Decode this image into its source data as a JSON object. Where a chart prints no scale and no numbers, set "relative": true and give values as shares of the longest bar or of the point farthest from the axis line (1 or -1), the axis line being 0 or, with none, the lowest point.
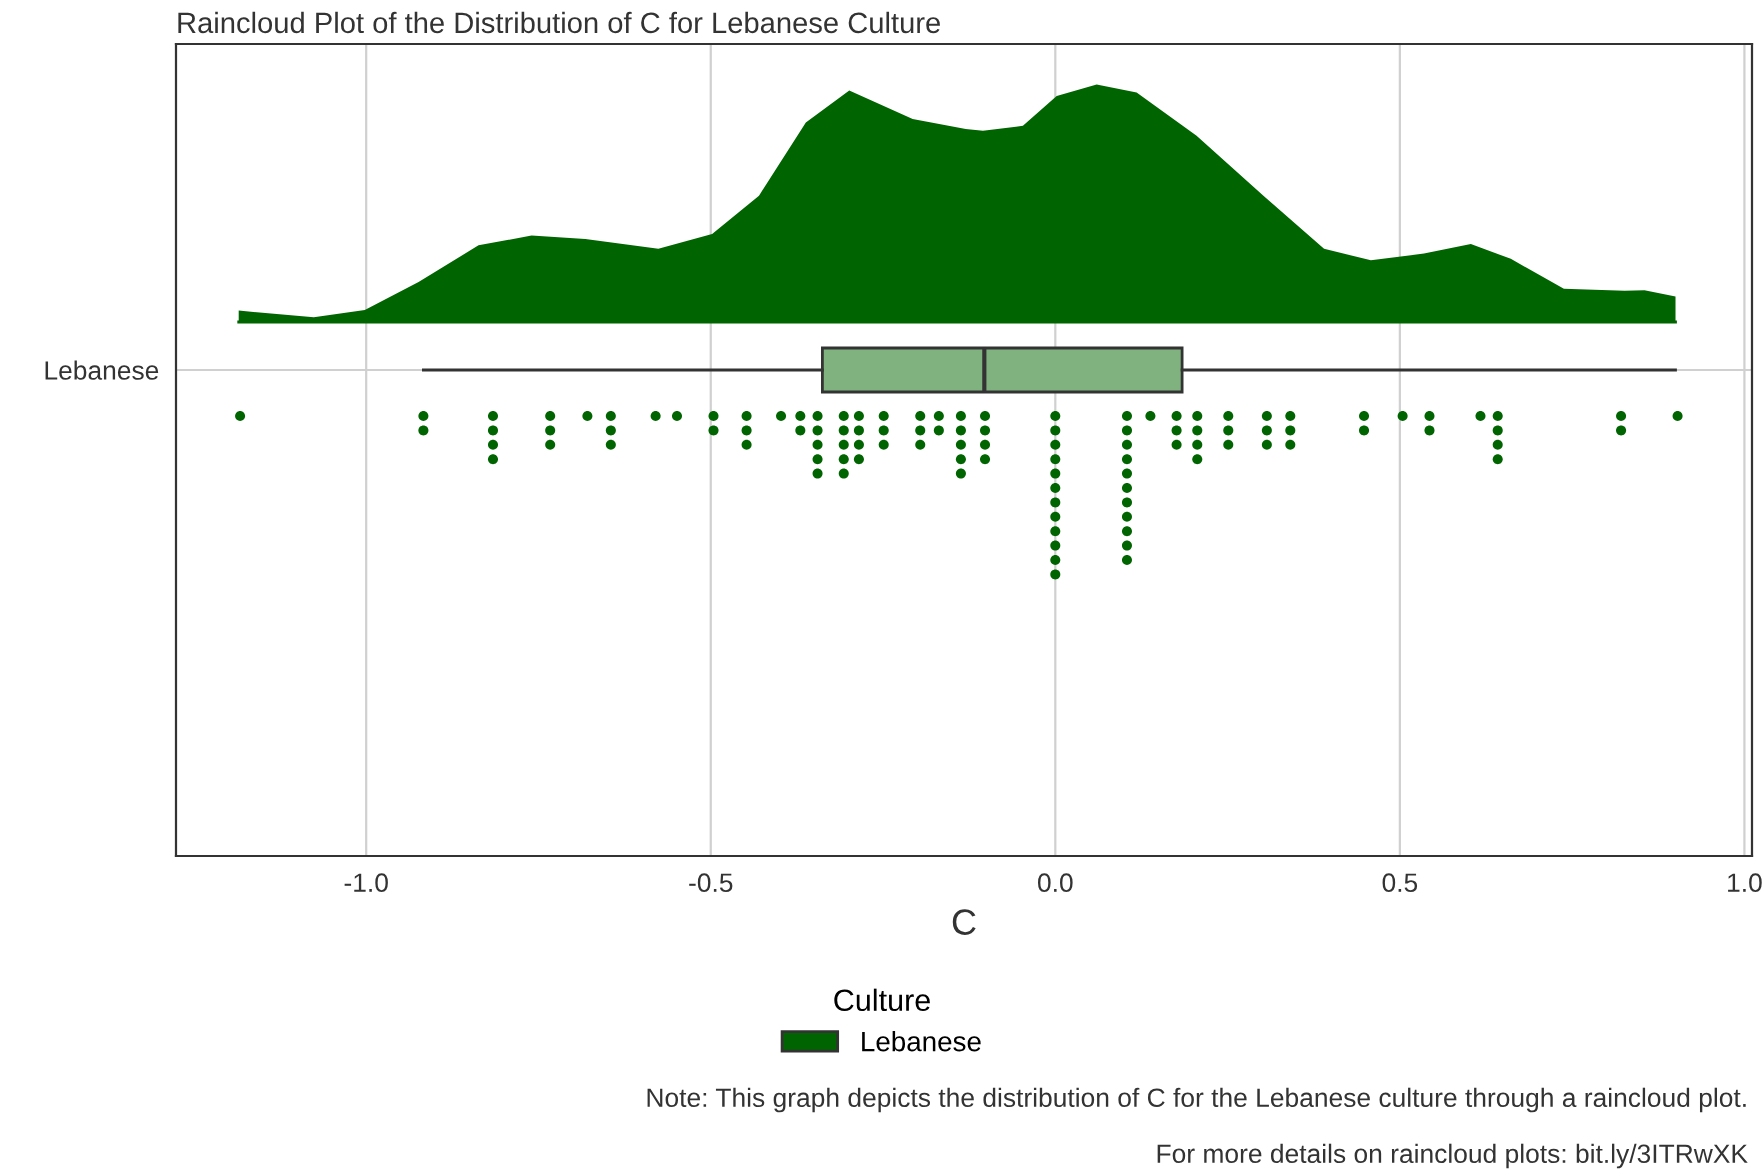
{
  "chart_data": [
    {
      "type": "area",
      "relative": true,
      "xlim": [
        -1.276,
        1.011
      ],
      "grid": "x",
      "legend": "bottom",
      "legend_title": "Culture",
      "series": [
        {
          "name": "Lebanese",
          "color": "#006400",
          "x": [
            -1.185,
            -1.076,
            -1.002,
            -0.924,
            -0.837,
            -0.76,
            -0.682,
            -0.576,
            -0.498,
            -0.43,
            -0.362,
            -0.299,
            -0.207,
            -0.13,
            -0.105,
            -0.047,
            0.002,
            0.06,
            0.118,
            0.205,
            0.302,
            0.39,
            0.458,
            0.535,
            0.603,
            0.661,
            0.738,
            0.826,
            0.855,
            0.9
          ],
          "values": [
            0.048,
            0.02,
            0.05,
            0.168,
            0.323,
            0.364,
            0.35,
            0.308,
            0.37,
            0.532,
            0.84,
            0.975,
            0.855,
            0.813,
            0.805,
            0.826,
            0.952,
            1.0,
            0.966,
            0.784,
            0.532,
            0.308,
            0.26,
            0.288,
            0.328,
            0.266,
            0.14,
            0.132,
            0.134,
            0.107
          ]
        }
      ]
    },
    {
      "type": "box",
      "title": "Raincloud Plot of the Distribution of C for Lebanese Culture",
      "xlabel": "C",
      "categories": [
        "Lebanese"
      ],
      "orientation": "horizontal",
      "xlim": [
        -1.276,
        1.011
      ],
      "xticks": [
        {
          "value": -1.0,
          "label": "-1.0"
        },
        {
          "value": -0.5,
          "label": "-0.5"
        },
        {
          "value": 0.0,
          "label": "0.0"
        },
        {
          "value": 0.5,
          "label": "0.5"
        },
        {
          "value": 1.0,
          "label": "1.0"
        }
      ],
      "ref_lines": [
        {
          "axis": "y",
          "value": "Lebanese",
          "color": "#d0d0d0"
        }
      ],
      "color": "#80b280",
      "boxes": [
        {
          "low": -0.917,
          "q1": -0.338,
          "median": -0.103,
          "q3": 0.184,
          "high": 0.9
        }
      ],
      "annotations": [
        "Note: This graph depicts the distribution of C for the Lebanese culture through a raincloud plot.",
        "For more details on raincloud plots: bit.ly/3ITRwXK"
      ],
      "series": [
        {
          "type": "scatter",
          "color": "#006400",
          "marker": "circle",
          "x": [
            "Lebanese",
            "Lebanese",
            "Lebanese",
            "Lebanese",
            "Lebanese",
            "Lebanese",
            "Lebanese",
            "Lebanese",
            "Lebanese",
            "Lebanese",
            "Lebanese",
            "Lebanese",
            "Lebanese",
            "Lebanese",
            "Lebanese",
            "Lebanese",
            "Lebanese",
            "Lebanese",
            "Lebanese",
            "Lebanese",
            "Lebanese",
            "Lebanese",
            "Lebanese",
            "Lebanese",
            "Lebanese",
            "Lebanese",
            "Lebanese",
            "Lebanese",
            "Lebanese",
            "Lebanese",
            "Lebanese",
            "Lebanese",
            "Lebanese",
            "Lebanese",
            "Lebanese",
            "Lebanese",
            "Lebanese",
            "Lebanese",
            "Lebanese",
            "Lebanese",
            "Lebanese",
            "Lebanese",
            "Lebanese",
            "Lebanese",
            "Lebanese",
            "Lebanese",
            "Lebanese",
            "Lebanese",
            "Lebanese",
            "Lebanese",
            "Lebanese",
            "Lebanese",
            "Lebanese",
            "Lebanese",
            "Lebanese",
            "Lebanese",
            "Lebanese",
            "Lebanese",
            "Lebanese",
            "Lebanese",
            "Lebanese",
            "Lebanese",
            "Lebanese",
            "Lebanese",
            "Lebanese",
            "Lebanese",
            "Lebanese",
            "Lebanese",
            "Lebanese",
            "Lebanese",
            "Lebanese",
            "Lebanese",
            "Lebanese",
            "Lebanese",
            "Lebanese",
            "Lebanese",
            "Lebanese",
            "Lebanese",
            "Lebanese",
            "Lebanese",
            "Lebanese",
            "Lebanese",
            "Lebanese",
            "Lebanese",
            "Lebanese",
            "Lebanese",
            "Lebanese",
            "Lebanese",
            "Lebanese",
            "Lebanese",
            "Lebanese",
            "Lebanese",
            "Lebanese",
            "Lebanese",
            "Lebanese",
            "Lebanese",
            "Lebanese",
            "Lebanese",
            "Lebanese",
            "Lebanese",
            "Lebanese",
            "Lebanese",
            "Lebanese",
            "Lebanese",
            "Lebanese",
            "Lebanese",
            "Lebanese",
            "Lebanese"
          ],
          "values": [
            -1.183,
            -0.917,
            -0.917,
            -0.816,
            -0.816,
            -0.816,
            -0.816,
            -0.733,
            -0.733,
            -0.733,
            -0.679,
            -0.645,
            -0.645,
            -0.645,
            -0.58,
            -0.549,
            -0.496,
            -0.496,
            -0.448,
            -0.448,
            -0.448,
            -0.398,
            -0.37,
            -0.37,
            -0.345,
            -0.345,
            -0.345,
            -0.345,
            -0.345,
            -0.307,
            -0.307,
            -0.307,
            -0.307,
            -0.307,
            -0.285,
            -0.285,
            -0.285,
            -0.285,
            -0.249,
            -0.249,
            -0.249,
            -0.196,
            -0.196,
            -0.196,
            -0.169,
            -0.169,
            -0.137,
            -0.137,
            -0.137,
            -0.137,
            -0.137,
            -0.102,
            -0.102,
            -0.102,
            -0.102,
            0.0,
            0.0,
            0.0,
            0.0,
            0.0,
            0.0,
            0.0,
            0.0,
            0.0,
            0.0,
            0.0,
            0.0,
            0.104,
            0.104,
            0.104,
            0.104,
            0.104,
            0.104,
            0.104,
            0.104,
            0.104,
            0.104,
            0.104,
            0.138,
            0.176,
            0.176,
            0.176,
            0.206,
            0.206,
            0.206,
            0.206,
            0.251,
            0.251,
            0.251,
            0.307,
            0.307,
            0.307,
            0.341,
            0.341,
            0.341,
            0.448,
            0.448,
            0.504,
            0.543,
            0.543,
            0.617,
            0.642,
            0.642,
            0.642,
            0.642,
            0.821,
            0.821,
            0.903
          ]
        }
      ]
    }
  ]
}
